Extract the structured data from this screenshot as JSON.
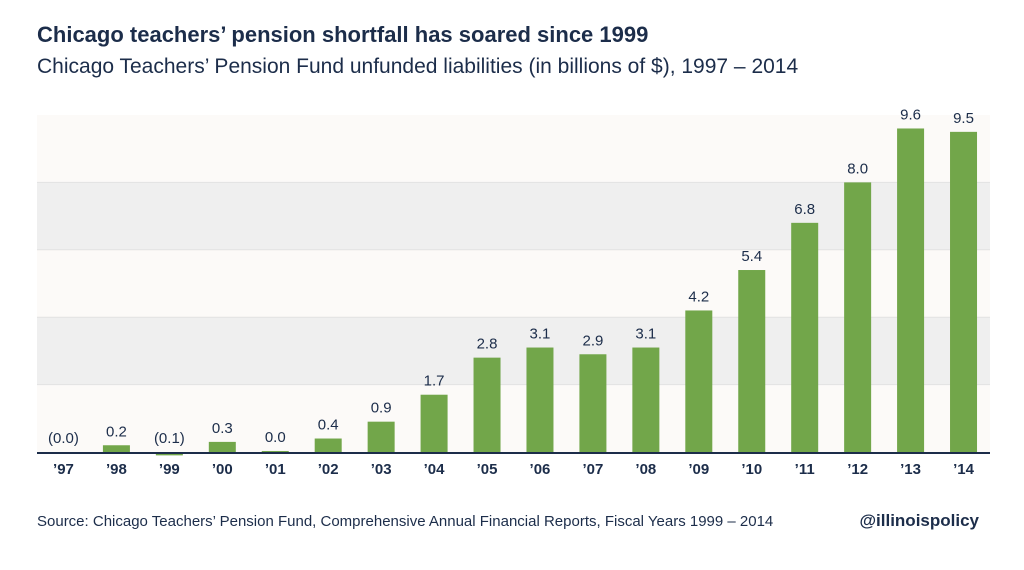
{
  "header": {
    "title": "Chicago teachers’ pension shortfall has soared since 1999",
    "subtitle": "Chicago Teachers’ Pension Fund unfunded liabilities (in billions of $), 1997 – 2014"
  },
  "footer": {
    "source": "Source: Chicago Teachers’ Pension Fund, Comprehensive Annual Financial Reports, Fiscal Years 1999 – 2014",
    "handle": "@illinoispolicy"
  },
  "colors": {
    "bar": "#72a64a",
    "text": "#1c2d4a",
    "band_dark": "#efefef",
    "band_light": "#fcfaf8",
    "grid": "#ffffff",
    "axis": "#1c2d4a"
  },
  "chart_data": {
    "type": "bar",
    "categories": [
      "’97",
      "’98",
      "’99",
      "’00",
      "’01",
      "’02",
      "’03",
      "’04",
      "’05",
      "’06",
      "’07",
      "’08",
      "’09",
      "’10",
      "’11",
      "’12",
      "’13",
      "’14"
    ],
    "values": [
      -0.02,
      0.2,
      -0.1,
      0.3,
      0.03,
      0.4,
      0.9,
      1.7,
      2.8,
      3.1,
      2.9,
      3.1,
      4.2,
      5.4,
      6.8,
      8.0,
      9.6,
      9.5
    ],
    "labels": [
      "(0.0)",
      "0.2",
      "(0.1)",
      "0.3",
      "0.0",
      "0.4",
      "0.9",
      "1.7",
      "2.8",
      "3.1",
      "2.9",
      "3.1",
      "4.2",
      "5.4",
      "6.8",
      "8.0",
      "9.6",
      "9.5"
    ],
    "ylim": [
      0,
      10
    ],
    "grid": true,
    "xlabel": "",
    "ylabel": ""
  }
}
